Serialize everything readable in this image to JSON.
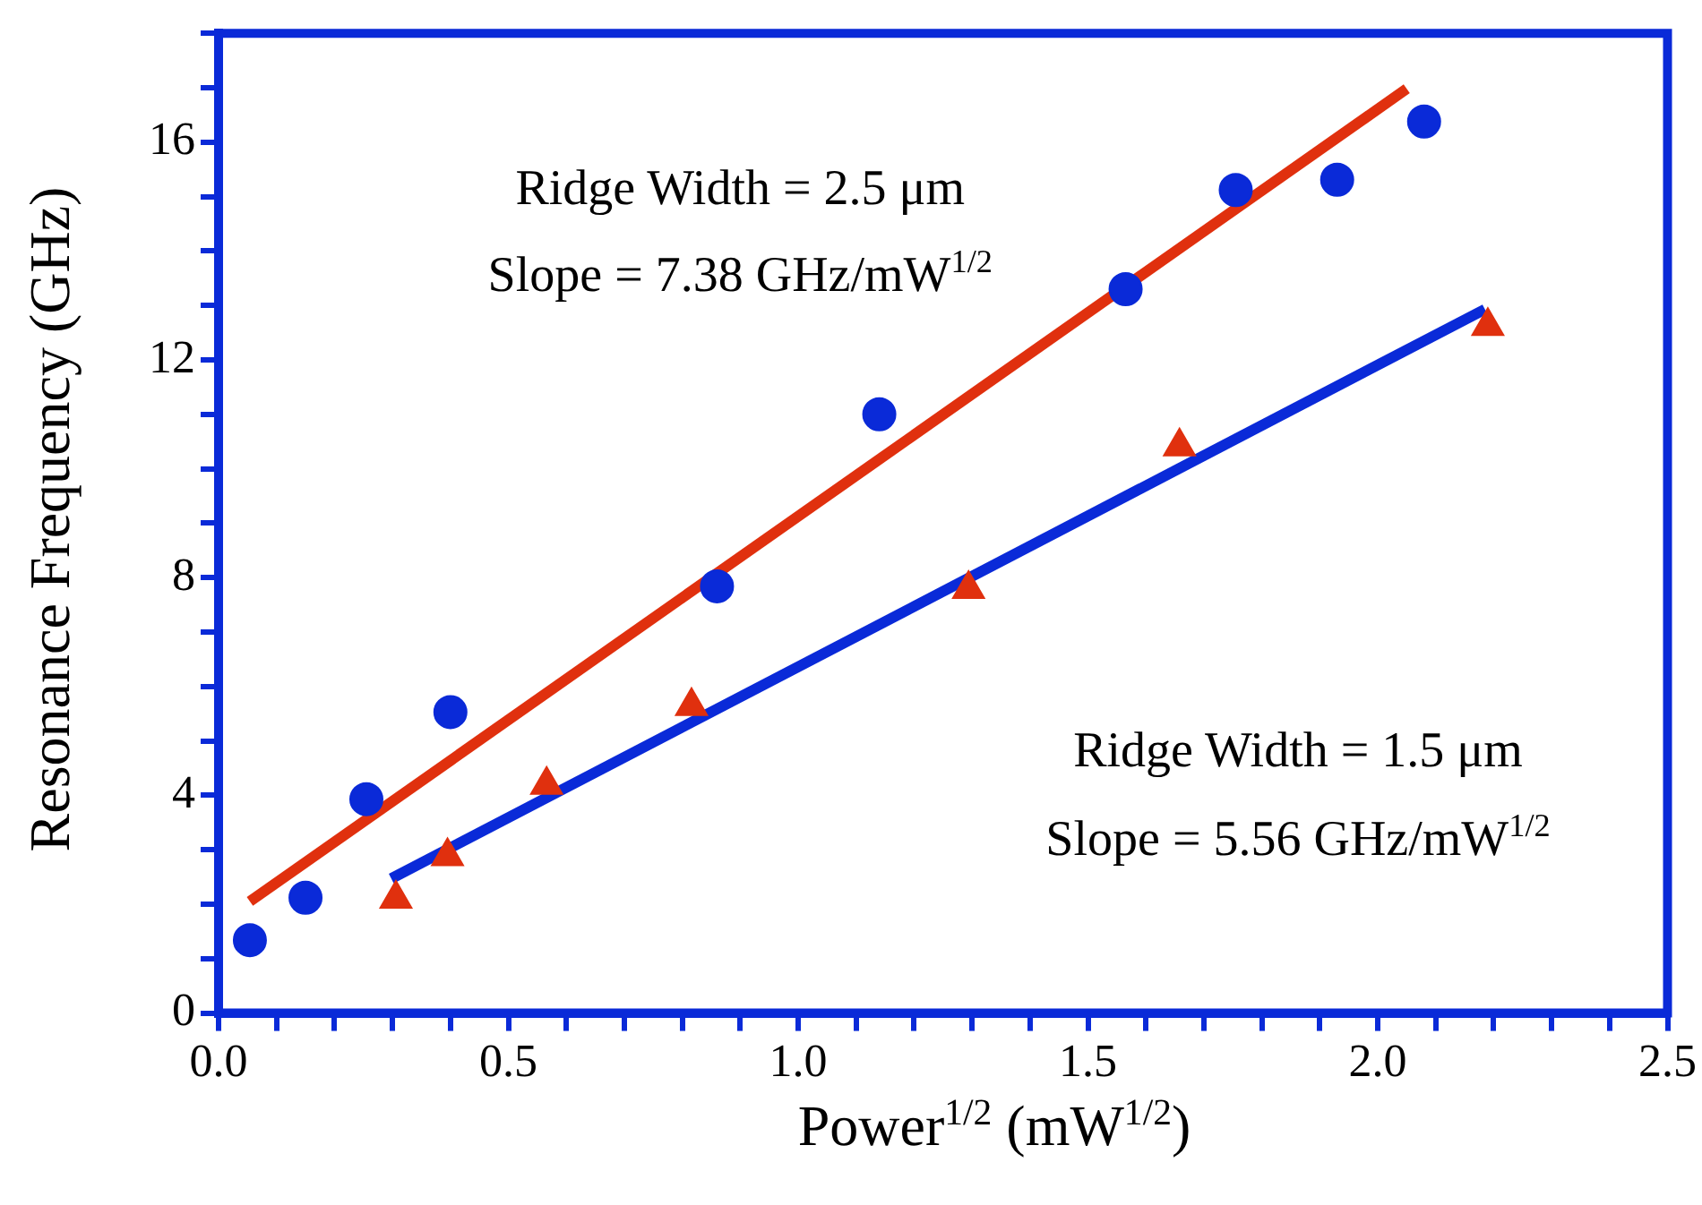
{
  "chart_data": {
    "type": "scatter",
    "xlabel": "Power$^{1/2}$ (mW$^{1/2}$)",
    "ylabel": "Resonance Frequency (GHz)",
    "xlim": [
      0,
      2.5
    ],
    "ylim": [
      0,
      18
    ],
    "xticks": [
      {
        "value": 0,
        "label": "0.0"
      },
      {
        "value": 0.1,
        "label": null
      },
      {
        "value": 0.2,
        "label": null
      },
      {
        "value": 0.3,
        "label": null
      },
      {
        "value": 0.4,
        "label": null
      },
      {
        "value": 0.5,
        "label": "0.5"
      },
      {
        "value": 0.6,
        "label": null
      },
      {
        "value": 0.7,
        "label": null
      },
      {
        "value": 0.8,
        "label": null
      },
      {
        "value": 0.9,
        "label": null
      },
      {
        "value": 1,
        "label": "1.0"
      },
      {
        "value": 1.1,
        "label": null
      },
      {
        "value": 1.2,
        "label": null
      },
      {
        "value": 1.3,
        "label": null
      },
      {
        "value": 1.4,
        "label": null
      },
      {
        "value": 1.5,
        "label": "1.5"
      },
      {
        "value": 1.6,
        "label": null
      },
      {
        "value": 1.7,
        "label": null
      },
      {
        "value": 1.8,
        "label": null
      },
      {
        "value": 1.9,
        "label": null
      },
      {
        "value": 2,
        "label": "2.0"
      },
      {
        "value": 2.1,
        "label": null
      },
      {
        "value": 2.2,
        "label": null
      },
      {
        "value": 2.3,
        "label": null
      },
      {
        "value": 2.4,
        "label": null
      },
      {
        "value": 2.5,
        "label": "2.5"
      }
    ],
    "yticks": [
      0,
      {
        "value": 1,
        "label": null
      },
      {
        "value": 2,
        "label": null
      },
      {
        "value": 3,
        "label": null
      },
      4,
      {
        "value": 5,
        "label": null
      },
      {
        "value": 6,
        "label": null
      },
      {
        "value": 7,
        "label": null
      },
      8,
      {
        "value": 9,
        "label": null
      },
      {
        "value": 10,
        "label": null
      },
      {
        "value": 11,
        "label": null
      },
      12,
      {
        "value": 13,
        "label": null
      },
      {
        "value": 14,
        "label": null
      },
      {
        "value": 15,
        "label": null
      },
      16,
      {
        "value": 17,
        "label": null
      },
      {
        "value": 18,
        "label": null
      }
    ],
    "grid": false,
    "series": [
      {
        "type": "line",
        "marker": "none",
        "color": "#e0300e",
        "x": [
          0.054,
          2.05
        ],
        "values": [
          2.05,
          16.98
        ]
      },
      {
        "type": "line",
        "marker": "none",
        "color": "#0a2ad8",
        "x": [
          0.298,
          2.185
        ],
        "values": [
          2.47,
          12.93
        ]
      },
      {
        "type": "scatter",
        "marker": "circle",
        "color": "#0a2ad8",
        "x": [
          0.054,
          0.15,
          0.255,
          0.4,
          0.86,
          1.14,
          1.565,
          1.755,
          1.93,
          2.08
        ],
        "values": [
          1.34,
          2.12,
          3.93,
          5.53,
          7.84,
          11.0,
          13.3,
          15.12,
          15.31,
          16.38
        ]
      },
      {
        "type": "scatter",
        "marker": "triangle",
        "color": "#e0300e",
        "x": [
          0.306,
          0.395,
          0.566,
          0.816,
          1.294,
          1.658,
          2.19
        ],
        "values": [
          2.1,
          2.88,
          4.19,
          5.64,
          7.79,
          10.41,
          12.62
        ]
      }
    ],
    "annotations": [
      "Ridge Width = 2.5 μm",
      "Slope = 7.38 GHz/mW$^{1/2}$",
      "Ridge Width = 1.5 μm",
      "Slope = 5.56 GHz/mW$^{1/2}$"
    ]
  }
}
